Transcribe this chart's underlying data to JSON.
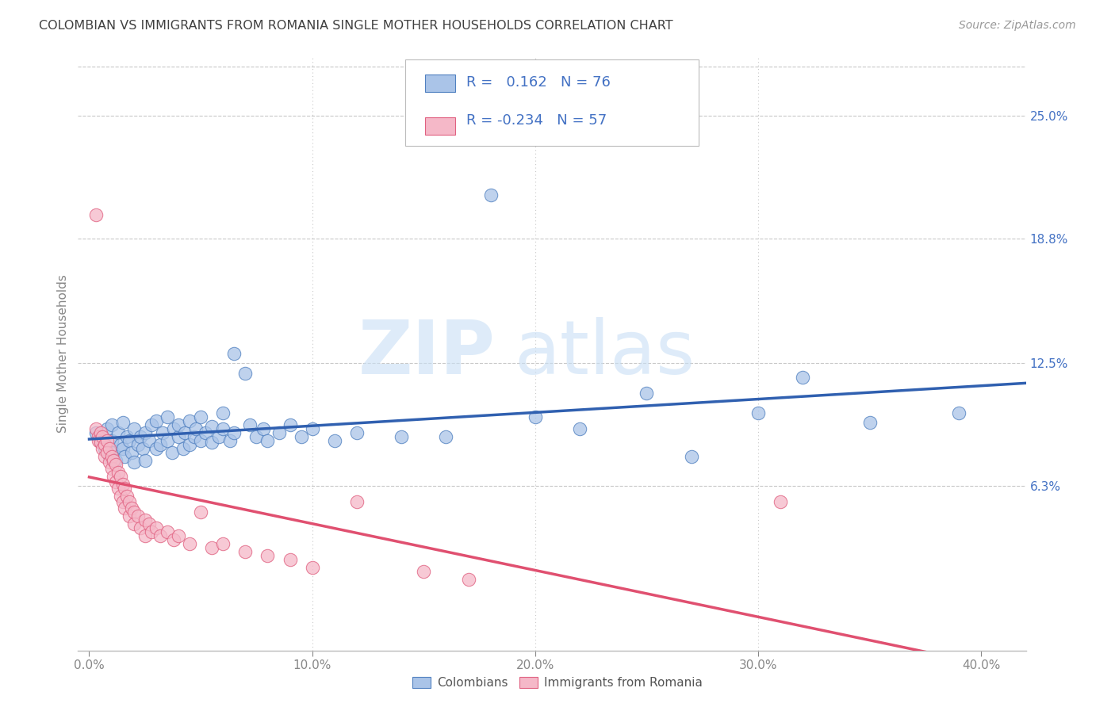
{
  "title": "COLOMBIAN VS IMMIGRANTS FROM ROMANIA SINGLE MOTHER HOUSEHOLDS CORRELATION CHART",
  "source": "Source: ZipAtlas.com",
  "xlabel_ticks": [
    "0.0%",
    "10.0%",
    "20.0%",
    "30.0%",
    "40.0%"
  ],
  "xlabel_tick_vals": [
    0.0,
    0.1,
    0.2,
    0.3,
    0.4
  ],
  "ylabel": "Single Mother Households",
  "ylabel_ticks": [
    "6.3%",
    "12.5%",
    "18.8%",
    "25.0%"
  ],
  "ylabel_tick_vals": [
    0.063,
    0.125,
    0.188,
    0.25
  ],
  "xlim": [
    -0.005,
    0.42
  ],
  "ylim": [
    -0.02,
    0.28
  ],
  "colombian_color": "#aac4e8",
  "romanian_color": "#f5b8c8",
  "colombian_edge_color": "#5080c0",
  "romanian_edge_color": "#e06080",
  "colombian_line_color": "#3060b0",
  "romanian_line_color": "#e05070",
  "R_colombian": 0.162,
  "N_colombian": 76,
  "R_romanian": -0.234,
  "N_romanian": 57,
  "legend_label_1": "Colombians",
  "legend_label_2": "Immigrants from Romania",
  "watermark_zip": "ZIP",
  "watermark_atlas": "atlas",
  "background_color": "#ffffff",
  "grid_color": "#c8c8c8",
  "title_color": "#404040",
  "right_axis_color": "#4472c4",
  "tick_color": "#888888",
  "colombian_scatter": [
    [
      0.003,
      0.09
    ],
    [
      0.005,
      0.085
    ],
    [
      0.006,
      0.088
    ],
    [
      0.007,
      0.082
    ],
    [
      0.008,
      0.092
    ],
    [
      0.009,
      0.078
    ],
    [
      0.01,
      0.086
    ],
    [
      0.01,
      0.094
    ],
    [
      0.011,
      0.08
    ],
    [
      0.012,
      0.076
    ],
    [
      0.013,
      0.09
    ],
    [
      0.014,
      0.084
    ],
    [
      0.015,
      0.082
    ],
    [
      0.015,
      0.095
    ],
    [
      0.016,
      0.078
    ],
    [
      0.017,
      0.088
    ],
    [
      0.018,
      0.086
    ],
    [
      0.019,
      0.08
    ],
    [
      0.02,
      0.092
    ],
    [
      0.02,
      0.075
    ],
    [
      0.022,
      0.084
    ],
    [
      0.023,
      0.088
    ],
    [
      0.024,
      0.082
    ],
    [
      0.025,
      0.09
    ],
    [
      0.025,
      0.076
    ],
    [
      0.027,
      0.086
    ],
    [
      0.028,
      0.094
    ],
    [
      0.03,
      0.082
    ],
    [
      0.03,
      0.096
    ],
    [
      0.032,
      0.084
    ],
    [
      0.033,
      0.09
    ],
    [
      0.035,
      0.086
    ],
    [
      0.035,
      0.098
    ],
    [
      0.037,
      0.08
    ],
    [
      0.038,
      0.092
    ],
    [
      0.04,
      0.088
    ],
    [
      0.04,
      0.094
    ],
    [
      0.042,
      0.082
    ],
    [
      0.043,
      0.09
    ],
    [
      0.045,
      0.096
    ],
    [
      0.045,
      0.084
    ],
    [
      0.047,
      0.088
    ],
    [
      0.048,
      0.092
    ],
    [
      0.05,
      0.086
    ],
    [
      0.05,
      0.098
    ],
    [
      0.052,
      0.09
    ],
    [
      0.055,
      0.085
    ],
    [
      0.055,
      0.093
    ],
    [
      0.058,
      0.088
    ],
    [
      0.06,
      0.092
    ],
    [
      0.06,
      0.1
    ],
    [
      0.063,
      0.086
    ],
    [
      0.065,
      0.09
    ],
    [
      0.065,
      0.13
    ],
    [
      0.07,
      0.12
    ],
    [
      0.072,
      0.094
    ],
    [
      0.075,
      0.088
    ],
    [
      0.078,
      0.092
    ],
    [
      0.08,
      0.086
    ],
    [
      0.085,
      0.09
    ],
    [
      0.09,
      0.094
    ],
    [
      0.095,
      0.088
    ],
    [
      0.1,
      0.092
    ],
    [
      0.11,
      0.086
    ],
    [
      0.12,
      0.09
    ],
    [
      0.14,
      0.088
    ],
    [
      0.16,
      0.088
    ],
    [
      0.18,
      0.21
    ],
    [
      0.2,
      0.098
    ],
    [
      0.22,
      0.092
    ],
    [
      0.25,
      0.11
    ],
    [
      0.27,
      0.078
    ],
    [
      0.3,
      0.1
    ],
    [
      0.32,
      0.118
    ],
    [
      0.35,
      0.095
    ],
    [
      0.39,
      0.1
    ]
  ],
  "romanian_scatter": [
    [
      0.003,
      0.092
    ],
    [
      0.004,
      0.088
    ],
    [
      0.004,
      0.086
    ],
    [
      0.005,
      0.09
    ],
    [
      0.005,
      0.085
    ],
    [
      0.006,
      0.082
    ],
    [
      0.006,
      0.088
    ],
    [
      0.007,
      0.084
    ],
    [
      0.007,
      0.078
    ],
    [
      0.008,
      0.086
    ],
    [
      0.008,
      0.08
    ],
    [
      0.009,
      0.075
    ],
    [
      0.009,
      0.082
    ],
    [
      0.01,
      0.078
    ],
    [
      0.01,
      0.072
    ],
    [
      0.011,
      0.076
    ],
    [
      0.011,
      0.068
    ],
    [
      0.012,
      0.074
    ],
    [
      0.012,
      0.065
    ],
    [
      0.013,
      0.07
    ],
    [
      0.013,
      0.062
    ],
    [
      0.014,
      0.068
    ],
    [
      0.014,
      0.058
    ],
    [
      0.015,
      0.064
    ],
    [
      0.015,
      0.055
    ],
    [
      0.016,
      0.062
    ],
    [
      0.016,
      0.052
    ],
    [
      0.017,
      0.058
    ],
    [
      0.018,
      0.055
    ],
    [
      0.018,
      0.048
    ],
    [
      0.019,
      0.052
    ],
    [
      0.02,
      0.05
    ],
    [
      0.02,
      0.044
    ],
    [
      0.022,
      0.048
    ],
    [
      0.023,
      0.042
    ],
    [
      0.025,
      0.046
    ],
    [
      0.025,
      0.038
    ],
    [
      0.027,
      0.044
    ],
    [
      0.028,
      0.04
    ],
    [
      0.03,
      0.042
    ],
    [
      0.032,
      0.038
    ],
    [
      0.035,
      0.04
    ],
    [
      0.038,
      0.036
    ],
    [
      0.04,
      0.038
    ],
    [
      0.045,
      0.034
    ],
    [
      0.05,
      0.05
    ],
    [
      0.055,
      0.032
    ],
    [
      0.06,
      0.034
    ],
    [
      0.07,
      0.03
    ],
    [
      0.08,
      0.028
    ],
    [
      0.09,
      0.026
    ],
    [
      0.1,
      0.022
    ],
    [
      0.12,
      0.055
    ],
    [
      0.15,
      0.02
    ],
    [
      0.17,
      0.016
    ],
    [
      0.003,
      0.2
    ],
    [
      0.31,
      0.055
    ]
  ]
}
